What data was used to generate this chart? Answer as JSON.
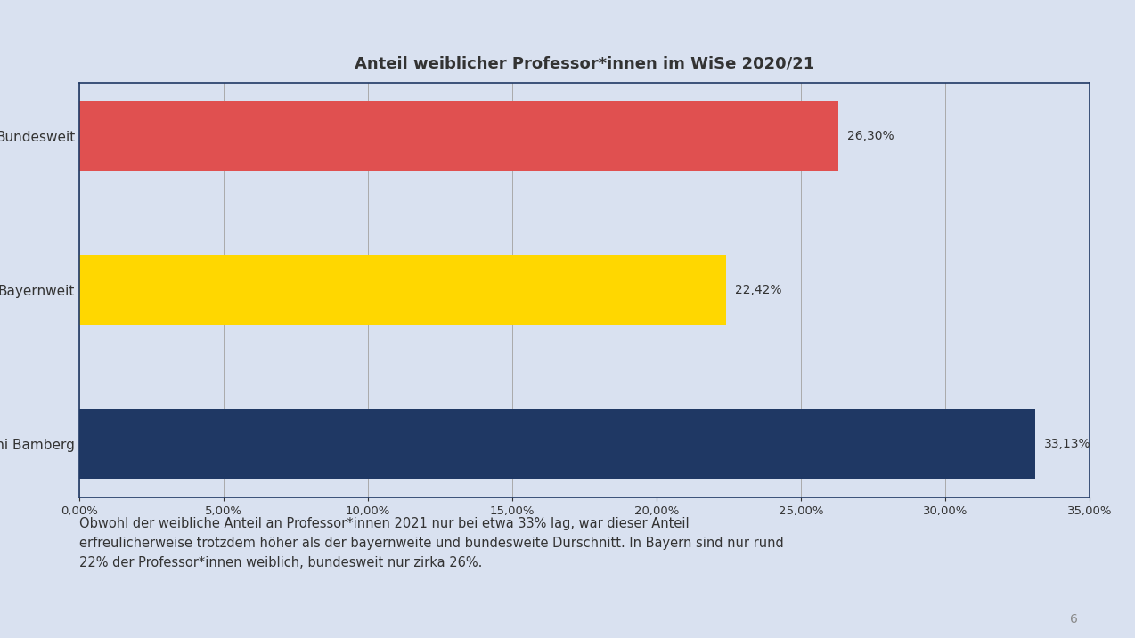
{
  "title": "Anteil weiblicher Professor*innen im WiSe 2020/21",
  "categories": [
    "Uni Bamberg",
    "Bayernweit",
    "Bundesweit"
  ],
  "values": [
    33.13,
    22.42,
    26.3
  ],
  "bar_colors": [
    "#1f3864",
    "#ffd700",
    "#e05050"
  ],
  "value_labels": [
    "33,13%",
    "22,42%",
    "26,30%"
  ],
  "xlim": [
    0,
    35
  ],
  "xticks": [
    0,
    5,
    10,
    15,
    20,
    25,
    30,
    35
  ],
  "xtick_labels": [
    "0,00%",
    "5,00%",
    "10,00%",
    "15,00%",
    "20,00%",
    "25,00%",
    "30,00%",
    "35,00%"
  ],
  "background_color": "#d9e1f0",
  "chart_bg_color": "#d9e1f0",
  "border_color": "#1f3864",
  "title_fontsize": 13,
  "label_fontsize": 11,
  "tick_fontsize": 9.5,
  "value_label_fontsize": 10,
  "caption": "Obwohl der weibliche Anteil an Professor*innen 2021 nur bei etwa 33% lag, war dieser Anteil\nerfreulicherweise trotzdem höher als der bayernweite und bundesweite Durschnitt. In Bayern sind nur rund\n22% der Professor*innen weiblich, bundesweit nur zirka 26%.",
  "caption_fontsize": 10.5,
  "page_number": "6"
}
